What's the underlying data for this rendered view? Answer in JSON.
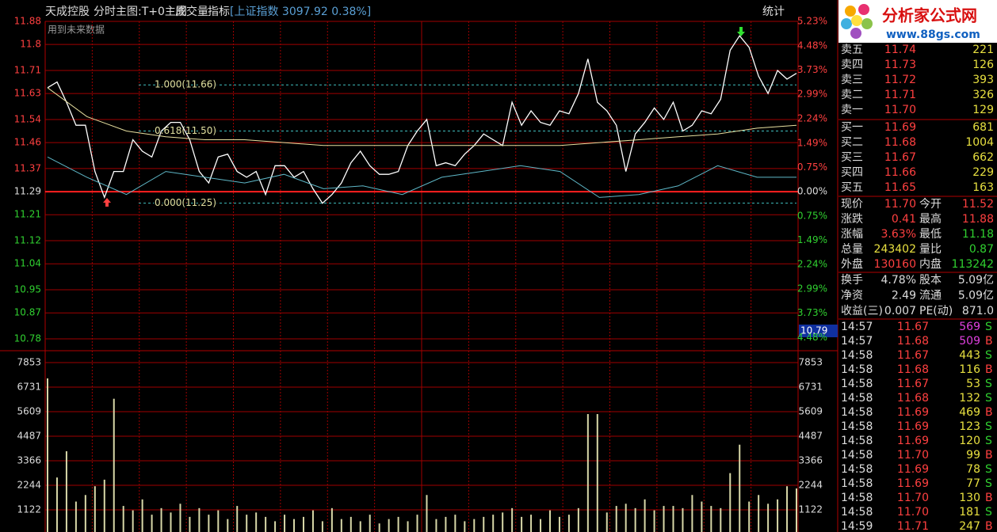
{
  "header": {
    "title": "天成控股",
    "tabs": [
      "分时",
      "主图:T+0主图",
      "成交量",
      "指标"
    ],
    "index": "[上证指数 3097.92 0.38%]",
    "stats_button": "统计",
    "note": "用到未来数据"
  },
  "logo": {
    "name": "分析家公式网",
    "url": "www.88gs.com"
  },
  "chart_data": [
    {
      "type": "line",
      "ylim": [
        10.78,
        11.88
      ],
      "yticks": [
        11.88,
        11.8,
        11.71,
        11.63,
        11.54,
        11.46,
        11.37,
        11.29,
        11.21,
        11.12,
        11.04,
        10.95,
        10.87,
        10.78
      ],
      "y2lim": [
        -4.52,
        5.23
      ],
      "y2ticks": [
        {
          "value": 5.23,
          "label": "5.23%"
        },
        {
          "value": 4.48,
          "label": "4.48%"
        },
        {
          "value": 3.73,
          "label": "3.73%"
        },
        {
          "value": 2.99,
          "label": "2.99%"
        },
        {
          "value": 2.24,
          "label": "2.24%"
        },
        {
          "value": 1.49,
          "label": "1.49%"
        },
        {
          "value": 0.75,
          "label": "0.75%"
        },
        {
          "value": 0,
          "label": "0.00%"
        },
        {
          "value": -0.75,
          "label": "0.75%"
        },
        {
          "value": -1.49,
          "label": "1.49%"
        },
        {
          "value": -2.24,
          "label": "2.24%"
        },
        {
          "value": -2.99,
          "label": "2.99%"
        },
        {
          "value": -3.73,
          "label": "3.73%"
        },
        {
          "value": -4.48,
          "label": "4.48%"
        }
      ],
      "grid": true,
      "series": [
        {
          "color": "#ffffff",
          "values": [
            11.65,
            11.67,
            11.6,
            11.52,
            11.52,
            11.36,
            11.27,
            11.36,
            11.36,
            11.47,
            11.43,
            11.41,
            11.5,
            11.53,
            11.53,
            11.47,
            11.36,
            11.32,
            11.41,
            11.42,
            11.36,
            11.34,
            11.36,
            11.28,
            11.38,
            11.38,
            11.34,
            11.36,
            11.3,
            11.25,
            11.28,
            11.32,
            11.39,
            11.43,
            11.38,
            11.35,
            11.35,
            11.36,
            11.45,
            11.5,
            11.54,
            11.38,
            11.39,
            11.38,
            11.42,
            11.45,
            11.49,
            11.47,
            11.45,
            11.6,
            11.52,
            11.57,
            11.53,
            11.52,
            11.57,
            11.56,
            11.63,
            11.75,
            11.6,
            11.57,
            11.52,
            11.36,
            11.49,
            11.53,
            11.58,
            11.54,
            11.6,
            11.5,
            11.52,
            11.57,
            11.56,
            11.61,
            11.78,
            11.83,
            11.79,
            11.69,
            11.63,
            11.71,
            11.68,
            11.7
          ]
        },
        {
          "color": "#e8e0a0",
          "values": [
            11.65,
            11.55,
            11.5,
            11.48,
            11.47,
            11.47,
            11.46,
            11.45,
            11.45,
            11.45,
            11.45,
            11.45,
            11.45,
            11.45,
            11.46,
            11.47,
            11.48,
            11.49,
            11.51,
            11.52
          ]
        },
        {
          "color": "#5fb8c8",
          "values": [
            11.41,
            11.34,
            11.28,
            11.36,
            11.34,
            11.32,
            11.35,
            11.3,
            11.31,
            11.28,
            11.34,
            11.36,
            11.38,
            11.36,
            11.27,
            11.28,
            11.31,
            11.38,
            11.34,
            11.34
          ]
        }
      ],
      "annotations": [
        {
          "text": "1.000(11.66)",
          "value": 11.66
        },
        {
          "text": "0.618(11.50)",
          "value": 11.5
        },
        {
          "text": "0.000(11.25)",
          "value": 11.25
        }
      ],
      "cursor": {
        "label": "10.79",
        "value": 10.79
      }
    },
    {
      "type": "bar",
      "color": "#d8d8a8",
      "ylim": [
        0,
        7853
      ],
      "yticks": [
        7853,
        6731,
        5609,
        4487,
        3366,
        2244,
        1122
      ],
      "grid": true,
      "values": [
        7130,
        2600,
        3800,
        1500,
        1800,
        2200,
        2500,
        6200,
        1300,
        1100,
        1600,
        900,
        1200,
        1000,
        1400,
        800,
        1200,
        900,
        1100,
        700,
        1300,
        900,
        1000,
        800,
        600,
        900,
        700,
        800,
        1100,
        600,
        1200,
        700,
        800,
        600,
        900,
        500,
        700,
        800,
        600,
        900,
        1800,
        700,
        800,
        900,
        600,
        700,
        800,
        900,
        1000,
        1200,
        800,
        900,
        700,
        1100,
        800,
        900,
        1200,
        5500,
        5500,
        1000,
        1300,
        1400,
        1200,
        1600,
        1100,
        1300,
        1300,
        1200,
        1800,
        1500,
        1300,
        1200,
        2800,
        4100,
        1500,
        1800,
        1400,
        1600,
        2200,
        2100
      ]
    }
  ],
  "order_book": {
    "sell": [
      [
        "卖五",
        "11.74",
        "221"
      ],
      [
        "卖四",
        "11.73",
        "126"
      ],
      [
        "卖三",
        "11.72",
        "393"
      ],
      [
        "卖二",
        "11.71",
        "326"
      ],
      [
        "卖一",
        "11.70",
        "129"
      ]
    ],
    "buy": [
      [
        "买一",
        "11.69",
        "681"
      ],
      [
        "买二",
        "11.68",
        "1004"
      ],
      [
        "买三",
        "11.67",
        "662"
      ],
      [
        "买四",
        "11.66",
        "229"
      ],
      [
        "买五",
        "11.65",
        "163"
      ]
    ]
  },
  "quote": [
    [
      "现价",
      "11.70",
      "今开",
      "11.52"
    ],
    [
      "涨跌",
      "0.41",
      "最高",
      "11.88"
    ],
    [
      "涨幅",
      "3.63%",
      "最低",
      "11.18"
    ],
    [
      "总量",
      "243402",
      "量比",
      "0.87"
    ],
    [
      "外盘",
      "130160",
      "内盘",
      "113242"
    ]
  ],
  "fundamentals": [
    [
      "换手",
      "4.78%",
      "股本",
      "5.09亿"
    ],
    [
      "净资",
      "2.49",
      "流通",
      "5.09亿"
    ],
    [
      "收益(三)",
      "0.007",
      "PE(动)",
      "871.0"
    ]
  ],
  "trades": [
    [
      "14:57",
      "11.67",
      "569",
      "S"
    ],
    [
      "14:57",
      "11.68",
      "509",
      "B"
    ],
    [
      "14:58",
      "11.67",
      "443",
      "S"
    ],
    [
      "14:58",
      "11.68",
      "116",
      "B"
    ],
    [
      "14:58",
      "11.67",
      "53",
      "S"
    ],
    [
      "14:58",
      "11.68",
      "132",
      "S"
    ],
    [
      "14:58",
      "11.69",
      "469",
      "B"
    ],
    [
      "14:58",
      "11.69",
      "123",
      "S"
    ],
    [
      "14:58",
      "11.69",
      "120",
      "S"
    ],
    [
      "14:58",
      "11.70",
      "99",
      "B"
    ],
    [
      "14:58",
      "11.69",
      "78",
      "S"
    ],
    [
      "14:58",
      "11.69",
      "77",
      "S"
    ],
    [
      "14:58",
      "11.70",
      "130",
      "B"
    ],
    [
      "14:58",
      "11.70",
      "181",
      "S"
    ],
    [
      "14:59",
      "11.71",
      "247",
      "B"
    ]
  ]
}
